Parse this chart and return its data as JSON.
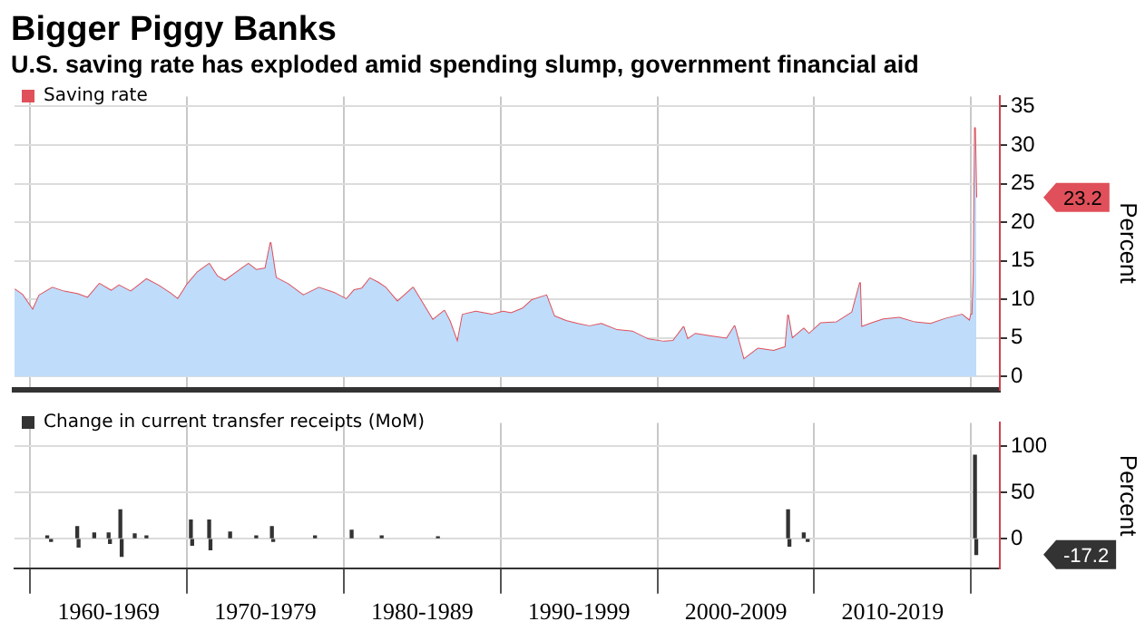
{
  "chart_data": [
    {
      "type": "area",
      "title": "Bigger Piggy Banks",
      "subtitle": "U.S. saving rate has exploded amid spending slump, government financial aid",
      "ylabel": "Percent",
      "legend": "top left",
      "grid": true,
      "tick_labels": "y",
      "xlim": [
        "1959-01",
        "2021-11"
      ],
      "ylim": [
        -1.7,
        36.3
      ],
      "yticks": [
        0,
        5,
        10,
        15,
        20,
        25,
        30,
        35
      ],
      "xticks": [
        {
          "value": "1960-01",
          "label": null
        },
        {
          "value": "1970-01",
          "label": null
        },
        {
          "value": "1980-01",
          "label": null
        },
        {
          "value": "1990-01",
          "label": null
        },
        {
          "value": "2000-01",
          "label": null
        },
        {
          "value": "2010-01",
          "label": null
        },
        {
          "value": "2020-01",
          "label": null
        }
      ],
      "annotations": [
        "23.2"
      ],
      "series": [
        {
          "color": "#bfdcfb",
          "x": [
            "1959-01",
            "1959-07",
            "1960-03",
            "1960-08",
            "1961-06",
            "1962-03",
            "1963-01",
            "1963-09",
            "1964-06",
            "1965-03",
            "1965-09",
            "1966-06",
            "1967-06",
            "1968-03",
            "1968-12",
            "1969-06",
            "1970-01",
            "1970-09",
            "1971-06",
            "1971-12",
            "1972-06",
            "1973-03",
            "1973-12",
            "1974-06",
            "1975-01",
            "1975-05",
            "1975-09",
            "1976-06",
            "1977-06",
            "1978-06",
            "1979-06",
            "1980-03",
            "1980-09",
            "1981-03",
            "1981-09",
            "1982-03",
            "1982-09",
            "1983-06",
            "1984-06",
            "1985-03",
            "1985-09",
            "1986-06",
            "1986-10",
            "1987-04",
            "1987-08",
            "1988-06",
            "1989-06",
            "1990-03",
            "1990-09",
            "1991-06",
            "1992-01",
            "1992-12",
            "1993-06",
            "1994-03",
            "1994-12",
            "1995-09",
            "1996-06",
            "1997-06",
            "1998-06",
            "1999-06",
            "2000-06",
            "2001-01",
            "2001-09",
            "2001-12",
            "2002-06",
            "2003-06",
            "2004-06",
            "2004-12",
            "2005-07",
            "2006-06",
            "2007-06",
            "2008-03",
            "2008-05",
            "2008-08",
            "2009-05",
            "2009-09",
            "2010-06",
            "2011-06",
            "2012-06",
            "2012-12",
            "2013-01",
            "2013-09",
            "2014-06",
            "2015-06",
            "2016-06",
            "2017-06",
            "2018-06",
            "2019-06",
            "2019-12",
            "2020-01",
            "2020-02",
            "2020-03",
            "2020-04",
            "2020-05"
          ],
          "values": [
            11.3,
            10.6,
            8.6,
            10.5,
            11.5,
            11.0,
            10.7,
            10.2,
            12.0,
            11.1,
            11.8,
            11.0,
            12.6,
            11.8,
            10.8,
            10.0,
            11.9,
            13.5,
            14.6,
            13.0,
            12.4,
            13.5,
            14.6,
            13.8,
            14.0,
            17.3,
            12.8,
            12.0,
            10.5,
            11.5,
            10.8,
            10.0,
            11.2,
            11.4,
            12.7,
            12.2,
            11.5,
            9.7,
            11.5,
            9.0,
            7.3,
            8.5,
            7.2,
            4.4,
            8.0,
            8.4,
            8.0,
            8.4,
            8.2,
            8.8,
            9.9,
            10.5,
            7.8,
            7.2,
            6.8,
            6.5,
            6.8,
            6.0,
            5.8,
            4.8,
            4.5,
            4.6,
            6.4,
            4.8,
            5.5,
            5.2,
            4.9,
            6.5,
            2.2,
            3.6,
            3.3,
            3.8,
            7.9,
            4.9,
            6.2,
            5.5,
            6.9,
            7.0,
            8.3,
            12.1,
            6.4,
            6.9,
            7.4,
            7.6,
            7.0,
            6.8,
            7.5,
            8.0,
            7.2,
            8.0,
            8.3,
            12.9,
            32.2,
            23.2
          ]
        },
        {
          "type": "line",
          "name": "Saving rate",
          "color": "#e0505a",
          "x": [
            "1959-01",
            "1959-07",
            "1960-03",
            "1960-08",
            "1961-06",
            "1962-03",
            "1963-01",
            "1963-09",
            "1964-06",
            "1965-03",
            "1965-09",
            "1966-06",
            "1967-06",
            "1968-03",
            "1968-12",
            "1969-06",
            "1970-01",
            "1970-09",
            "1971-06",
            "1971-12",
            "1972-06",
            "1973-03",
            "1973-12",
            "1974-06",
            "1975-01",
            "1975-05",
            "1975-09",
            "1976-06",
            "1977-06",
            "1978-06",
            "1979-06",
            "1980-03",
            "1980-09",
            "1981-03",
            "1981-09",
            "1982-03",
            "1982-09",
            "1983-06",
            "1984-06",
            "1985-03",
            "1985-09",
            "1986-06",
            "1986-10",
            "1987-04",
            "1987-08",
            "1988-06",
            "1989-06",
            "1990-03",
            "1990-09",
            "1991-06",
            "1992-01",
            "1992-12",
            "1993-06",
            "1994-03",
            "1994-12",
            "1995-09",
            "1996-06",
            "1997-06",
            "1998-06",
            "1999-06",
            "2000-06",
            "2001-01",
            "2001-09",
            "2001-12",
            "2002-06",
            "2003-06",
            "2004-06",
            "2004-12",
            "2005-07",
            "2006-06",
            "2007-06",
            "2008-03",
            "2008-05",
            "2008-08",
            "2009-05",
            "2009-09",
            "2010-06",
            "2011-06",
            "2012-06",
            "2012-12",
            "2013-01",
            "2013-09",
            "2014-06",
            "2015-06",
            "2016-06",
            "2017-06",
            "2018-06",
            "2019-06",
            "2019-12",
            "2020-01",
            "2020-02",
            "2020-03",
            "2020-04",
            "2020-05"
          ],
          "values": [
            11.3,
            10.6,
            8.6,
            10.5,
            11.5,
            11.0,
            10.7,
            10.2,
            12.0,
            11.1,
            11.8,
            11.0,
            12.6,
            11.8,
            10.8,
            10.0,
            11.9,
            13.5,
            14.6,
            13.0,
            12.4,
            13.5,
            14.6,
            13.8,
            14.0,
            17.3,
            12.8,
            12.0,
            10.5,
            11.5,
            10.8,
            10.0,
            11.2,
            11.4,
            12.7,
            12.2,
            11.5,
            9.7,
            11.5,
            9.0,
            7.3,
            8.5,
            7.2,
            4.4,
            8.0,
            8.4,
            8.0,
            8.4,
            8.2,
            8.8,
            9.9,
            10.5,
            7.8,
            7.2,
            6.8,
            6.5,
            6.8,
            6.0,
            5.8,
            4.8,
            4.5,
            4.6,
            6.4,
            4.8,
            5.5,
            5.2,
            4.9,
            6.5,
            2.2,
            3.6,
            3.3,
            3.8,
            7.9,
            4.9,
            6.2,
            5.5,
            6.9,
            7.0,
            8.3,
            12.1,
            6.4,
            6.9,
            7.4,
            7.6,
            7.0,
            6.8,
            7.5,
            8.0,
            7.2,
            8.0,
            8.3,
            12.9,
            32.2,
            23.2
          ]
        }
      ]
    },
    {
      "type": "bar",
      "ylabel": "Percent",
      "legend": "top left",
      "grid": true,
      "xlim": [
        "1959-01",
        "2021-11"
      ],
      "ylim": [
        -32,
        125
      ],
      "yticks": [
        0,
        50,
        100
      ],
      "xticks": [
        {
          "value": "1960-01",
          "label": null
        },
        {
          "value": "1965-01",
          "label": "1960-1969"
        },
        {
          "value": "1970-01",
          "label": null
        },
        {
          "value": "1975-01",
          "label": "1970-1979"
        },
        {
          "value": "1980-01",
          "label": null
        },
        {
          "value": "1985-01",
          "label": "1980-1989"
        },
        {
          "value": "1990-01",
          "label": null
        },
        {
          "value": "1995-01",
          "label": "1990-1999"
        },
        {
          "value": "2000-01",
          "label": null
        },
        {
          "value": "2005-01",
          "label": "2000-2009"
        },
        {
          "value": "2010-01",
          "label": null
        },
        {
          "value": "2015-01",
          "label": "2010-2019"
        },
        {
          "value": "2020-01",
          "label": null
        }
      ],
      "annotations": [
        "-17.2"
      ],
      "series": [
        {
          "name": "Change in current transfer receipts (MoM)",
          "color": "#333333",
          "x": [
            "1961-02",
            "1961-05",
            "1963-01",
            "1963-02",
            "1964-02",
            "1965-01",
            "1965-02",
            "1965-10",
            "1965-11",
            "1966-09",
            "1967-06",
            "1970-04",
            "1970-05",
            "1971-06",
            "1971-07",
            "1972-10",
            "1974-06",
            "1975-06",
            "1975-07",
            "1978-03",
            "1980-07",
            "1982-06",
            "1986-01",
            "2008-05",
            "2008-06",
            "2009-05",
            "2009-08",
            "2020-04",
            "2020-05"
          ],
          "values": [
            3,
            -3,
            13,
            -9,
            6,
            6,
            -5,
            31,
            -19,
            5,
            3,
            20,
            -7,
            20,
            -12,
            7,
            3,
            13,
            -3,
            3,
            9,
            3,
            2,
            31,
            -8,
            6,
            -3,
            90,
            -17.2
          ]
        }
      ]
    }
  ]
}
